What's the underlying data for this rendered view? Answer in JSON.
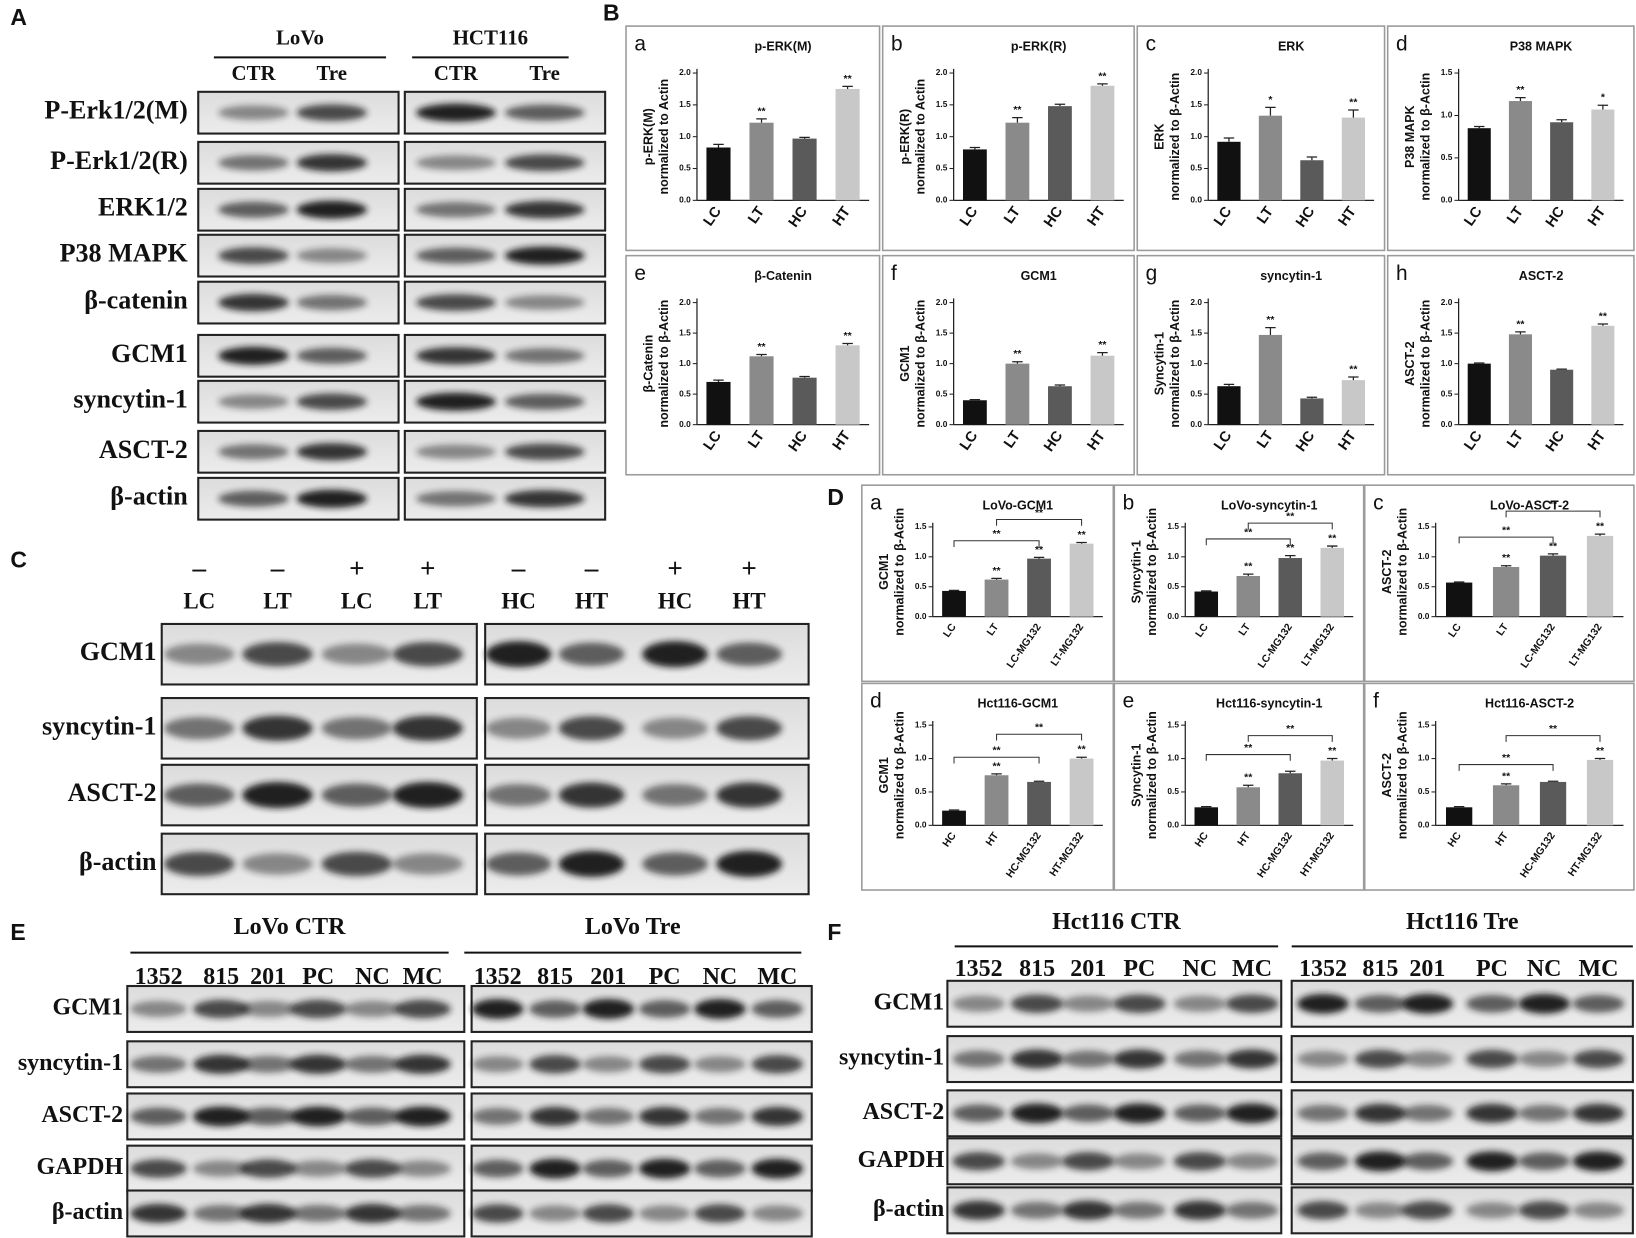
{
  "panel_labels": [
    "A",
    "B",
    "C",
    "D",
    "E",
    "F"
  ],
  "blot_a": {
    "groups": [
      {
        "name": "LoVo",
        "lanes": [
          "CTR",
          "Tre"
        ]
      },
      {
        "name": "HCT116",
        "lanes": [
          "CTR",
          "Tre"
        ]
      }
    ],
    "rows": [
      "P-Erk1/2(M)",
      "P-Erk1/2(R)",
      "ERK1/2",
      "P38 MAPK",
      "β-catenin",
      "GCM1",
      "syncytin-1",
      "ASCT-2",
      "β-actin"
    ]
  },
  "blot_c": {
    "groups": [
      {
        "treatment": [
          "–",
          "–",
          "+",
          "+"
        ],
        "lanes": [
          "LC",
          "LT",
          "LC",
          "LT"
        ]
      },
      {
        "treatment": [
          "–",
          "–",
          "+",
          "+"
        ],
        "lanes": [
          "HC",
          "HT",
          "HC",
          "HT"
        ]
      }
    ],
    "rows": [
      "GCM1",
      "syncytin-1",
      "ASCT-2",
      "β-actin"
    ]
  },
  "blot_e": {
    "groups": [
      {
        "name": "LoVo CTR",
        "lanes": [
          "1352",
          "815",
          "201",
          "PC",
          "NC",
          "MC"
        ]
      },
      {
        "name": "LoVo Tre",
        "lanes": [
          "1352",
          "815",
          "201",
          "PC",
          "NC",
          "MC"
        ]
      }
    ],
    "rows": [
      "GCM1",
      "syncytin-1",
      "ASCT-2",
      "GAPDH",
      "β-actin"
    ]
  },
  "blot_f": {
    "groups": [
      {
        "name": "Hct116 CTR",
        "lanes": [
          "1352",
          "815",
          "201",
          "PC",
          "NC",
          "MC"
        ]
      },
      {
        "name": "Hct116 Tre",
        "lanes": [
          "1352",
          "815",
          "201",
          "PC",
          "NC",
          "MC"
        ]
      }
    ],
    "rows": [
      "GCM1",
      "syncytin-1",
      "ASCT-2",
      "GAPDH",
      "β-actin"
    ]
  },
  "chart_data": [
    {
      "type": "bar",
      "panel": "a",
      "title": "p-ERK(M)",
      "ylabel": [
        "p-ERK(M)",
        "normalized to Actin"
      ],
      "categories": [
        "LC",
        "LT",
        "HC",
        "HT"
      ],
      "values": [
        0.83,
        1.22,
        0.97,
        1.75
      ],
      "errors": [
        0.05,
        0.06,
        0.02,
        0.04
      ],
      "annotations": [
        null,
        "**",
        null,
        "**"
      ],
      "colors": [
        "#111111",
        "#8a8a8a",
        "#5a5a5a",
        "#c8c8c8"
      ],
      "ylim": [
        0,
        2
      ],
      "yticks": [
        {
          "value": 0,
          "label": "0.0"
        },
        {
          "value": 0.5,
          "label": "0.5"
        },
        {
          "value": 1,
          "label": "1.0"
        },
        {
          "value": 1.5,
          "label": "1.5"
        },
        {
          "value": 2,
          "label": "2.0"
        }
      ]
    },
    {
      "type": "bar",
      "panel": "b",
      "title": "p-ERK(R)",
      "ylabel": [
        "p-ERK(R)",
        "normalized to Actin"
      ],
      "categories": [
        "LC",
        "LT",
        "HC",
        "HT"
      ],
      "values": [
        0.8,
        1.22,
        1.48,
        1.8
      ],
      "errors": [
        0.03,
        0.08,
        0.03,
        0.03
      ],
      "annotations": [
        null,
        "**",
        null,
        "**"
      ],
      "colors": [
        "#111111",
        "#8a8a8a",
        "#5a5a5a",
        "#c8c8c8"
      ],
      "ylim": [
        0,
        2
      ],
      "yticks": [
        {
          "value": 0,
          "label": "0.0"
        },
        {
          "value": 0.5,
          "label": "0.5"
        },
        {
          "value": 1,
          "label": "1.0"
        },
        {
          "value": 1.5,
          "label": "1.5"
        },
        {
          "value": 2,
          "label": "2.0"
        }
      ]
    },
    {
      "type": "bar",
      "panel": "c",
      "title": "ERK",
      "ylabel": [
        "ERK",
        "normalized to β-Actin"
      ],
      "categories": [
        "LC",
        "LT",
        "HC",
        "HT"
      ],
      "values": [
        0.92,
        1.33,
        0.63,
        1.3
      ],
      "errors": [
        0.06,
        0.13,
        0.05,
        0.12
      ],
      "annotations": [
        null,
        "*",
        null,
        "**"
      ],
      "colors": [
        "#111111",
        "#8a8a8a",
        "#5a5a5a",
        "#c8c8c8"
      ],
      "ylim": [
        0,
        2
      ],
      "yticks": [
        {
          "value": 0,
          "label": "0.0"
        },
        {
          "value": 0.5,
          "label": "0.5"
        },
        {
          "value": 1,
          "label": "1.0"
        },
        {
          "value": 1.5,
          "label": "1.5"
        },
        {
          "value": 2,
          "label": "2.0"
        }
      ]
    },
    {
      "type": "bar",
      "panel": "d",
      "title": "P38 MAPK",
      "ylabel": [
        "P38 MAPK",
        "normalized to β-Actin"
      ],
      "categories": [
        "LC",
        "LT",
        "HC",
        "HT"
      ],
      "values": [
        0.85,
        1.17,
        0.92,
        1.07
      ],
      "errors": [
        0.02,
        0.04,
        0.03,
        0.05
      ],
      "annotations": [
        null,
        "**",
        null,
        "*"
      ],
      "colors": [
        "#111111",
        "#8a8a8a",
        "#5a5a5a",
        "#c8c8c8"
      ],
      "ylim": [
        0,
        1.5
      ],
      "yticks": [
        {
          "value": 0,
          "label": "0.0"
        },
        {
          "value": 0.5,
          "label": "0.5"
        },
        {
          "value": 1,
          "label": "1.0"
        },
        {
          "value": 1.5,
          "label": "1.5"
        }
      ]
    },
    {
      "type": "bar",
      "panel": "e",
      "title": "β-Catenin",
      "ylabel": [
        "β-Catenin",
        "normalized to β-Actin"
      ],
      "categories": [
        "LC",
        "LT",
        "HC",
        "HT"
      ],
      "values": [
        0.7,
        1.12,
        0.77,
        1.3
      ],
      "errors": [
        0.03,
        0.03,
        0.02,
        0.03
      ],
      "annotations": [
        null,
        "**",
        null,
        "**"
      ],
      "colors": [
        "#111111",
        "#8a8a8a",
        "#5a5a5a",
        "#c8c8c8"
      ],
      "ylim": [
        0,
        2
      ],
      "yticks": [
        {
          "value": 0,
          "label": "0.0"
        },
        {
          "value": 0.5,
          "label": "0.5"
        },
        {
          "value": 1,
          "label": "1.0"
        },
        {
          "value": 1.5,
          "label": "1.5"
        },
        {
          "value": 2,
          "label": "2.0"
        }
      ]
    },
    {
      "type": "bar",
      "panel": "f",
      "title": "GCM1",
      "ylabel": [
        "GCM1",
        "normalized to β-Actin"
      ],
      "categories": [
        "LC",
        "LT",
        "HC",
        "HT"
      ],
      "values": [
        0.4,
        1.0,
        0.63,
        1.13
      ],
      "errors": [
        0.01,
        0.03,
        0.02,
        0.05
      ],
      "annotations": [
        null,
        "**",
        null,
        "**"
      ],
      "colors": [
        "#111111",
        "#8a8a8a",
        "#5a5a5a",
        "#c8c8c8"
      ],
      "ylim": [
        0,
        2
      ],
      "yticks": [
        {
          "value": 0,
          "label": "0.0"
        },
        {
          "value": 0.5,
          "label": "0.5"
        },
        {
          "value": 1,
          "label": "1.0"
        },
        {
          "value": 1.5,
          "label": "1.5"
        },
        {
          "value": 2,
          "label": "2.0"
        }
      ]
    },
    {
      "type": "bar",
      "panel": "g",
      "title": "syncytin-1",
      "ylabel": [
        "Syncytin-1",
        "normalized to β-Actin"
      ],
      "categories": [
        "LC",
        "LT",
        "HC",
        "HT"
      ],
      "values": [
        0.63,
        1.47,
        0.43,
        0.73
      ],
      "errors": [
        0.03,
        0.12,
        0.02,
        0.05
      ],
      "annotations": [
        null,
        "**",
        null,
        "**"
      ],
      "colors": [
        "#111111",
        "#8a8a8a",
        "#5a5a5a",
        "#c8c8c8"
      ],
      "ylim": [
        0,
        2
      ],
      "yticks": [
        {
          "value": 0,
          "label": "0.0"
        },
        {
          "value": 0.5,
          "label": "0.5"
        },
        {
          "value": 1,
          "label": "1.0"
        },
        {
          "value": 1.5,
          "label": "1.5"
        },
        {
          "value": 2,
          "label": "2.0"
        }
      ]
    },
    {
      "type": "bar",
      "panel": "h",
      "title": "ASCT-2",
      "ylabel": [
        "ASCT-2",
        "normalized to β-Actin"
      ],
      "categories": [
        "LC",
        "LT",
        "HC",
        "HT"
      ],
      "values": [
        1.0,
        1.48,
        0.9,
        1.62
      ],
      "errors": [
        0.01,
        0.04,
        0.01,
        0.03
      ],
      "annotations": [
        null,
        "**",
        null,
        "**"
      ],
      "colors": [
        "#111111",
        "#8a8a8a",
        "#5a5a5a",
        "#c8c8c8"
      ],
      "ylim": [
        0,
        2
      ],
      "yticks": [
        {
          "value": 0,
          "label": "0.0"
        },
        {
          "value": 0.5,
          "label": "0.5"
        },
        {
          "value": 1,
          "label": "1.0"
        },
        {
          "value": 1.5,
          "label": "1.5"
        },
        {
          "value": 2,
          "label": "2.0"
        }
      ]
    },
    {
      "type": "bar",
      "panel": "a",
      "title": "LoVo-GCM1",
      "ylabel": [
        "GCM1",
        "normalized to β-Actin"
      ],
      "categories": [
        "LC",
        "LT",
        "LC-MG132",
        "LT-MG132"
      ],
      "values": [
        0.43,
        0.62,
        0.97,
        1.22
      ],
      "errors": [
        0.01,
        0.02,
        0.02,
        0.02
      ],
      "annotations": [
        null,
        "**",
        "**",
        "**"
      ],
      "brackets": [
        {
          "between": [
            "LC",
            "LC-MG132"
          ],
          "label": "**"
        },
        {
          "between": [
            "LT",
            "LT-MG132"
          ],
          "label": "**"
        }
      ],
      "colors": [
        "#111111",
        "#8a8a8a",
        "#5a5a5a",
        "#c8c8c8"
      ],
      "ylim": [
        0,
        1.5
      ],
      "yticks": [
        {
          "value": 0,
          "label": "0.0"
        },
        {
          "value": 0.5,
          "label": "0.5"
        },
        {
          "value": 1,
          "label": "1.0"
        },
        {
          "value": 1.5,
          "label": "1.5"
        }
      ]
    },
    {
      "type": "bar",
      "panel": "b",
      "title": "LoVo-syncytin-1",
      "ylabel": [
        "Syncytin-1",
        "normalized to β-Actin"
      ],
      "categories": [
        "LC",
        "LT",
        "LC-MG132",
        "LT-MG132"
      ],
      "values": [
        0.42,
        0.68,
        0.98,
        1.15
      ],
      "errors": [
        0.01,
        0.03,
        0.04,
        0.03
      ],
      "annotations": [
        null,
        "**",
        "**",
        "**"
      ],
      "brackets": [
        {
          "between": [
            "LC",
            "LC-MG132"
          ],
          "label": "**"
        },
        {
          "between": [
            "LT",
            "LT-MG132"
          ],
          "label": "**"
        }
      ],
      "colors": [
        "#111111",
        "#8a8a8a",
        "#5a5a5a",
        "#c8c8c8"
      ],
      "ylim": [
        0,
        1.5
      ],
      "yticks": [
        {
          "value": 0,
          "label": "0.0"
        },
        {
          "value": 0.5,
          "label": "0.5"
        },
        {
          "value": 1,
          "label": "1.0"
        },
        {
          "value": 1.5,
          "label": "1.5"
        }
      ]
    },
    {
      "type": "bar",
      "panel": "c",
      "title": "LoVo-ASCT-2",
      "ylabel": [
        "ASCT-2",
        "normalized to β-Actin"
      ],
      "categories": [
        "LC",
        "LT",
        "LC-MG132",
        "LT-MG132"
      ],
      "values": [
        0.57,
        0.83,
        1.02,
        1.35
      ],
      "errors": [
        0.01,
        0.02,
        0.03,
        0.03
      ],
      "annotations": [
        null,
        "**",
        "**",
        "**"
      ],
      "brackets": [
        {
          "between": [
            "LC",
            "LC-MG132"
          ],
          "label": "**"
        },
        {
          "between": [
            "LT",
            "LT-MG132"
          ],
          "label": "**"
        }
      ],
      "colors": [
        "#111111",
        "#8a8a8a",
        "#5a5a5a",
        "#c8c8c8"
      ],
      "ylim": [
        0,
        1.5
      ],
      "yticks": [
        {
          "value": 0,
          "label": "0.0"
        },
        {
          "value": 0.5,
          "label": "0.5"
        },
        {
          "value": 1,
          "label": "1.0"
        },
        {
          "value": 1.5,
          "label": "1.5"
        }
      ]
    },
    {
      "type": "bar",
      "panel": "d",
      "title": "Hct116-GCM1",
      "ylabel": [
        "GCM1",
        "normalized to β-Actin"
      ],
      "categories": [
        "HC",
        "HT",
        "HC-MG132",
        "HT-MG132"
      ],
      "values": [
        0.22,
        0.75,
        0.65,
        1.0
      ],
      "errors": [
        0.01,
        0.02,
        0.01,
        0.02
      ],
      "annotations": [
        null,
        "**",
        null,
        "**"
      ],
      "brackets": [
        {
          "between": [
            "HC",
            "HC-MG132"
          ],
          "label": "**"
        },
        {
          "between": [
            "HT",
            "HT-MG132"
          ],
          "label": "**"
        }
      ],
      "colors": [
        "#111111",
        "#8a8a8a",
        "#5a5a5a",
        "#c8c8c8"
      ],
      "ylim": [
        0,
        1.5
      ],
      "yticks": [
        {
          "value": 0,
          "label": "0.0"
        },
        {
          "value": 0.5,
          "label": "0.5"
        },
        {
          "value": 1,
          "label": "1.0"
        },
        {
          "value": 1.5,
          "label": "1.5"
        }
      ]
    },
    {
      "type": "bar",
      "panel": "e",
      "title": "Hct116-syncytin-1",
      "ylabel": [
        "Syncytin-1",
        "normalized to β-Actin"
      ],
      "categories": [
        "HC",
        "HT",
        "HC-MG132",
        "HT-MG132"
      ],
      "values": [
        0.27,
        0.57,
        0.78,
        0.97
      ],
      "errors": [
        0.01,
        0.03,
        0.03,
        0.03
      ],
      "annotations": [
        null,
        "**",
        null,
        "**"
      ],
      "brackets": [
        {
          "between": [
            "HC",
            "HC-MG132"
          ],
          "label": "**"
        },
        {
          "between": [
            "HT",
            "HT-MG132"
          ],
          "label": "**"
        }
      ],
      "colors": [
        "#111111",
        "#8a8a8a",
        "#5a5a5a",
        "#c8c8c8"
      ],
      "ylim": [
        0,
        1.5
      ],
      "yticks": [
        {
          "value": 0,
          "label": "0.0"
        },
        {
          "value": 0.5,
          "label": "0.5"
        },
        {
          "value": 1,
          "label": "1.0"
        },
        {
          "value": 1.5,
          "label": "1.5"
        }
      ]
    },
    {
      "type": "bar",
      "panel": "f",
      "title": "Hct116-ASCT-2",
      "ylabel": [
        "ASCT-2",
        "normalized to β-Actin"
      ],
      "categories": [
        "HC",
        "HT",
        "HC-MG132",
        "HT-MG132"
      ],
      "values": [
        0.27,
        0.6,
        0.65,
        0.98
      ],
      "errors": [
        0.01,
        0.02,
        0.01,
        0.02
      ],
      "annotations": [
        null,
        "**",
        null,
        "**"
      ],
      "brackets": [
        {
          "between": [
            "HC",
            "HC-MG132"
          ],
          "label": "**"
        },
        {
          "between": [
            "HT",
            "HT-MG132"
          ],
          "label": "**"
        }
      ],
      "colors": [
        "#111111",
        "#8a8a8a",
        "#5a5a5a",
        "#c8c8c8"
      ],
      "ylim": [
        0,
        1.5
      ],
      "yticks": [
        {
          "value": 0,
          "label": "0.0"
        },
        {
          "value": 0.5,
          "label": "0.5"
        },
        {
          "value": 1,
          "label": "1.0"
        },
        {
          "value": 1.5,
          "label": "1.5"
        }
      ]
    }
  ]
}
